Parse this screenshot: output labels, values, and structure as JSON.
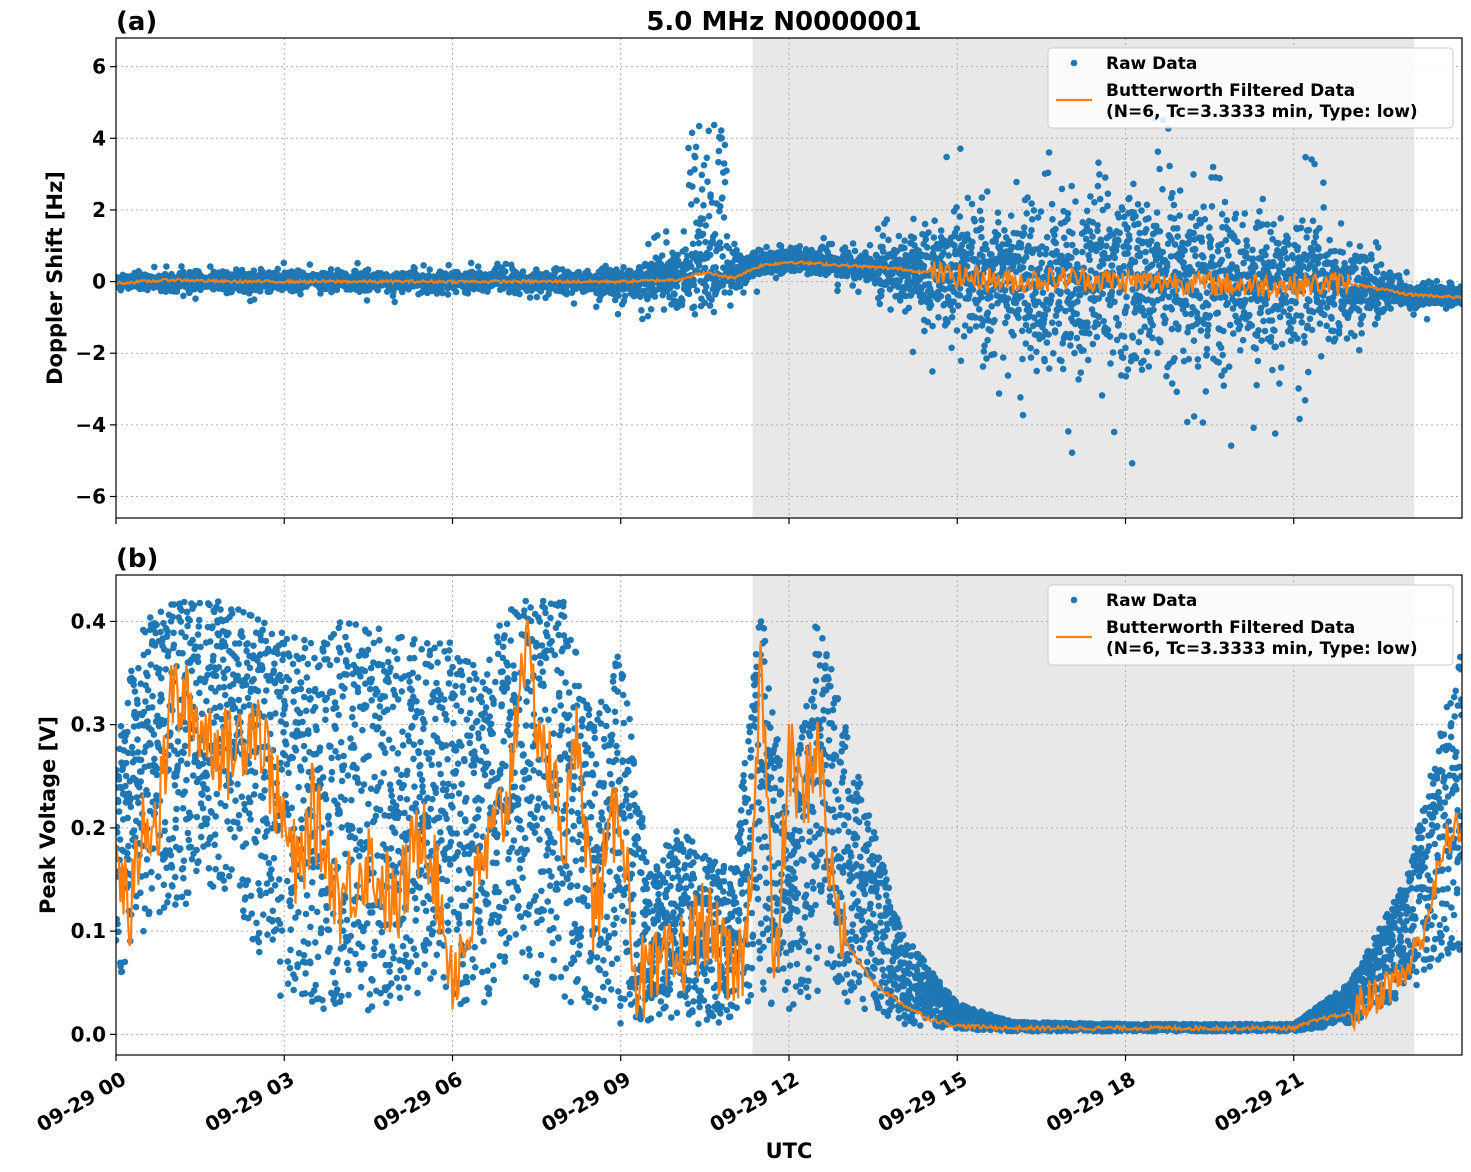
{
  "figure": {
    "title": "5.0 MHz N0000001",
    "xlabel": "UTC"
  },
  "chart_data": [
    {
      "type": "scatter",
      "panel_label": "(a)",
      "ylabel": "Doppler Shift [Hz]",
      "xlim": [
        "2023-09-29T00:00",
        "2023-09-29T24:00"
      ],
      "ylim": [
        -6.6,
        6.8
      ],
      "yticks": [
        -6,
        -4,
        -2,
        0,
        2,
        4,
        6
      ],
      "ytick_labels": [
        "−6",
        "−4",
        "−2",
        "0",
        "2",
        "4",
        "6"
      ],
      "xticks": [
        "09-29 00",
        "09-29 03",
        "09-29 06",
        "09-29 09",
        "09-29 12",
        "09-29 15",
        "09-29 18",
        "09-29 21"
      ],
      "grid": true,
      "shaded_region": {
        "start_hour": 11.35,
        "end_hour": 23.15,
        "color": "#e8e8e8"
      },
      "legend": {
        "placement": "upper right",
        "entries": [
          {
            "marker": "dot",
            "color": "#1f77b4",
            "label_lines": [
              "Raw Data"
            ]
          },
          {
            "marker": "line",
            "color": "#ff7f0e",
            "label_lines": [
              "Butterworth Filtered Data",
              "(N=6, Tc=3.3333 min, Type: low)"
            ]
          }
        ]
      },
      "series": [
        {
          "name": "Raw Data",
          "color": "#1f77b4",
          "kind": "points",
          "envelope": {
            "x_hour": [
              0,
              2,
              4,
              6,
              8,
              9.5,
              10.5,
              11.3,
              12,
              13.5,
              14.5,
              15.5,
              17,
              18,
              19.5,
              21,
              22,
              23,
              24
            ],
            "center": [
              0.0,
              0.0,
              0.0,
              0.0,
              0.0,
              0.0,
              0.3,
              0.4,
              0.6,
              0.4,
              0.2,
              0.1,
              0.0,
              0.1,
              0.0,
              0.0,
              -0.2,
              -0.4,
              -0.4
            ],
            "spread": [
              0.2,
              0.3,
              0.3,
              0.3,
              0.3,
              0.6,
              1.2,
              0.4,
              0.4,
              0.5,
              1.5,
              2.2,
              2.6,
              2.8,
              2.6,
              2.2,
              1.3,
              0.4,
              0.3
            ]
          }
        },
        {
          "name": "Butterworth Filtered Data",
          "color": "#ff7f0e",
          "kind": "line",
          "x_hour": [
            0,
            1,
            2,
            3,
            4,
            5,
            6,
            7,
            8,
            9,
            10,
            10.5,
            11,
            11.5,
            12,
            12.5,
            13,
            13.5,
            14,
            14.5,
            15,
            16,
            17,
            18,
            19,
            20,
            21,
            22,
            23,
            24
          ],
          "values": [
            -0.05,
            0.05,
            0.0,
            0.0,
            0.0,
            0.0,
            0.0,
            0.0,
            0.0,
            0.0,
            0.05,
            0.25,
            0.1,
            0.45,
            0.55,
            0.5,
            0.45,
            0.4,
            0.35,
            0.25,
            0.15,
            0.0,
            0.1,
            0.0,
            0.0,
            -0.1,
            -0.1,
            -0.05,
            -0.35,
            -0.45
          ]
        }
      ]
    },
    {
      "type": "scatter",
      "panel_label": "(b)",
      "ylabel": "Peak Voltage [V]",
      "xlim": [
        "2023-09-29T00:00",
        "2023-09-29T24:00"
      ],
      "ylim": [
        -0.02,
        0.445
      ],
      "yticks": [
        0.0,
        0.1,
        0.2,
        0.3,
        0.4
      ],
      "ytick_labels": [
        "0.0",
        "0.1",
        "0.2",
        "0.3",
        "0.4"
      ],
      "xticks": [
        "09-29 00",
        "09-29 03",
        "09-29 06",
        "09-29 09",
        "09-29 12",
        "09-29 15",
        "09-29 18",
        "09-29 21"
      ],
      "grid": true,
      "shaded_region": {
        "start_hour": 11.35,
        "end_hour": 23.15,
        "color": "#e8e8e8"
      },
      "legend": {
        "placement": "upper right",
        "entries": [
          {
            "marker": "dot",
            "color": "#1f77b4",
            "label_lines": [
              "Raw Data"
            ]
          },
          {
            "marker": "line",
            "color": "#ff7f0e",
            "label_lines": [
              "Butterworth Filtered Data",
              "(N=6, Tc=3.3333 min, Type: low)"
            ]
          }
        ]
      },
      "series": [
        {
          "name": "Raw Data",
          "color": "#1f77b4",
          "kind": "points",
          "envelope": {
            "x_hour": [
              0,
              0.5,
              1,
              2,
              3,
              3.5,
              4,
              5,
              6,
              6.5,
              7,
              8,
              8.5,
              9,
              9.5,
              10,
              11,
              11.5,
              12,
              12.5,
              13,
              14,
              15,
              16,
              18,
              21,
              22,
              23,
              24
            ],
            "low": [
              0.03,
              0.1,
              0.12,
              0.14,
              0.03,
              0.02,
              0.02,
              0.02,
              0.02,
              0.02,
              0.06,
              0.02,
              0.02,
              0.01,
              0.01,
              0.01,
              0.01,
              0.03,
              0.02,
              0.04,
              0.03,
              0.01,
              0.005,
              0.003,
              0.003,
              0.003,
              0.01,
              0.04,
              0.08
            ],
            "high": [
              0.3,
              0.4,
              0.42,
              0.42,
              0.39,
              0.38,
              0.4,
              0.39,
              0.38,
              0.35,
              0.42,
              0.42,
              0.3,
              0.38,
              0.16,
              0.2,
              0.16,
              0.42,
              0.2,
              0.41,
              0.3,
              0.1,
              0.03,
              0.012,
              0.01,
              0.01,
              0.05,
              0.15,
              0.38
            ]
          }
        },
        {
          "name": "Butterworth Filtered Data",
          "color": "#ff7f0e",
          "kind": "line",
          "x_hour": [
            0,
            0.25,
            0.5,
            0.75,
            1,
            1.5,
            2,
            2.5,
            3,
            3.25,
            3.5,
            4,
            4.5,
            5,
            5.5,
            6,
            6.25,
            6.5,
            7,
            7.25,
            7.5,
            8,
            8.25,
            8.5,
            9,
            9.25,
            9.5,
            10,
            10.5,
            11,
            11.25,
            11.5,
            11.75,
            12,
            12.25,
            12.5,
            12.75,
            13,
            13.5,
            14,
            14.5,
            15,
            16,
            18,
            20,
            21,
            21.5,
            22,
            22.5,
            23,
            23.25,
            23.5,
            23.75,
            24
          ],
          "values": [
            0.18,
            0.11,
            0.22,
            0.2,
            0.33,
            0.3,
            0.27,
            0.31,
            0.2,
            0.15,
            0.22,
            0.13,
            0.17,
            0.12,
            0.21,
            0.06,
            0.09,
            0.16,
            0.23,
            0.38,
            0.31,
            0.19,
            0.3,
            0.11,
            0.23,
            0.06,
            0.05,
            0.07,
            0.11,
            0.05,
            0.09,
            0.37,
            0.04,
            0.27,
            0.22,
            0.29,
            0.15,
            0.09,
            0.05,
            0.03,
            0.015,
            0.008,
            0.006,
            0.006,
            0.006,
            0.006,
            0.015,
            0.02,
            0.04,
            0.06,
            0.09,
            0.14,
            0.19,
            0.2
          ]
        }
      ]
    }
  ]
}
